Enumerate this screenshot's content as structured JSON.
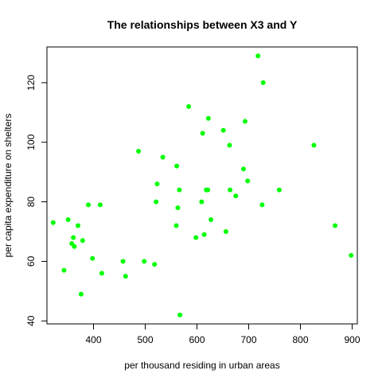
{
  "chart_data": {
    "type": "scatter",
    "title": "The relationships between X3 and Y",
    "xlabel": "per thousand residing in urban areas",
    "ylabel": "per capita expenditure on shelters",
    "xlim": [
      310,
      910
    ],
    "ylim": [
      39,
      132
    ],
    "xticks": [
      400,
      500,
      600,
      700,
      800,
      900
    ],
    "yticks": [
      40,
      60,
      80,
      100,
      120
    ],
    "grid": false,
    "point_color": "#00ff00",
    "points": [
      {
        "x": 322,
        "y": 73
      },
      {
        "x": 343,
        "y": 57
      },
      {
        "x": 351,
        "y": 74
      },
      {
        "x": 358,
        "y": 66
      },
      {
        "x": 361,
        "y": 68
      },
      {
        "x": 363,
        "y": 65
      },
      {
        "x": 370,
        "y": 72
      },
      {
        "x": 376,
        "y": 49
      },
      {
        "x": 379,
        "y": 67
      },
      {
        "x": 390,
        "y": 79
      },
      {
        "x": 398,
        "y": 61
      },
      {
        "x": 413,
        "y": 79
      },
      {
        "x": 416,
        "y": 56
      },
      {
        "x": 457,
        "y": 60
      },
      {
        "x": 462,
        "y": 55
      },
      {
        "x": 487,
        "y": 97
      },
      {
        "x": 498,
        "y": 60
      },
      {
        "x": 518,
        "y": 59
      },
      {
        "x": 521,
        "y": 80
      },
      {
        "x": 523,
        "y": 86
      },
      {
        "x": 534,
        "y": 95
      },
      {
        "x": 560,
        "y": 72
      },
      {
        "x": 561,
        "y": 92
      },
      {
        "x": 563,
        "y": 78
      },
      {
        "x": 566,
        "y": 84
      },
      {
        "x": 567,
        "y": 42
      },
      {
        "x": 584,
        "y": 112
      },
      {
        "x": 598,
        "y": 68
      },
      {
        "x": 609,
        "y": 80
      },
      {
        "x": 611,
        "y": 103
      },
      {
        "x": 614,
        "y": 69
      },
      {
        "x": 618,
        "y": 84
      },
      {
        "x": 621,
        "y": 84
      },
      {
        "x": 622,
        "y": 108
      },
      {
        "x": 627,
        "y": 74
      },
      {
        "x": 651,
        "y": 104
      },
      {
        "x": 656,
        "y": 70
      },
      {
        "x": 663,
        "y": 99
      },
      {
        "x": 664,
        "y": 84
      },
      {
        "x": 675,
        "y": 82
      },
      {
        "x": 690,
        "y": 91
      },
      {
        "x": 693,
        "y": 107
      },
      {
        "x": 698,
        "y": 87
      },
      {
        "x": 718,
        "y": 129
      },
      {
        "x": 726,
        "y": 79
      },
      {
        "x": 728,
        "y": 120
      },
      {
        "x": 759,
        "y": 84
      },
      {
        "x": 826,
        "y": 99
      },
      {
        "x": 867,
        "y": 72
      },
      {
        "x": 898,
        "y": 62
      }
    ]
  }
}
